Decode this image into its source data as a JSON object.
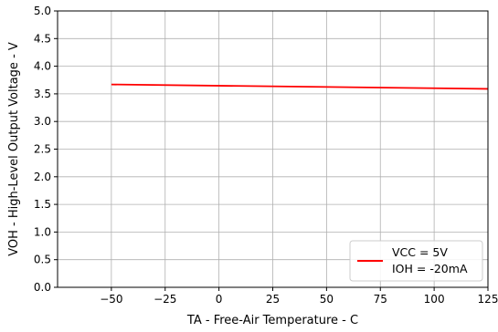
{
  "chart_data": {
    "type": "line",
    "title": "",
    "xlabel": "TA - Free-Air Temperature - C",
    "ylabel": "VOH - High-Level Output Voltage - V",
    "xlim": [
      -75,
      125
    ],
    "ylim": [
      0.0,
      5.0
    ],
    "xticks": [
      -50,
      -25,
      0,
      25,
      50,
      75,
      100,
      125
    ],
    "xtick_labels": [
      "−50",
      "−25",
      "0",
      "25",
      "50",
      "75",
      "100",
      "125"
    ],
    "yticks": [
      0.0,
      0.5,
      1.0,
      1.5,
      2.0,
      2.5,
      3.0,
      3.5,
      4.0,
      4.5,
      5.0
    ],
    "ytick_labels": [
      "0.0",
      "0.5",
      "1.0",
      "1.5",
      "2.0",
      "2.5",
      "3.0",
      "3.5",
      "4.0",
      "4.5",
      "5.0"
    ],
    "grid": true,
    "legend_position": "lower-right",
    "series": [
      {
        "name": "VCC = 5V\nIOH = -20mA",
        "legend_lines": [
          "VCC = 5V",
          "IOH = -20mA"
        ],
        "color": "#ff0000",
        "x": [
          -50,
          125
        ],
        "y": [
          3.67,
          3.59
        ]
      }
    ]
  }
}
